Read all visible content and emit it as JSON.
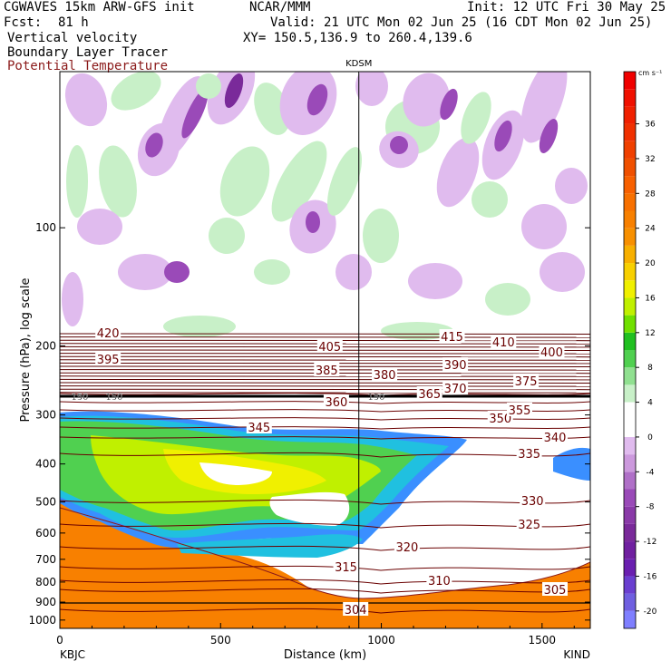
{
  "header": {
    "model": "CGWAVES 15km ARW-GFS init",
    "org": "NCAR/MMM",
    "init": "Init: 12 UTC Fri 30 May 25",
    "fcst_label": "Fcst:",
    "fcst_value": "81 h",
    "valid": "Valid: 21 UTC Mon 02 Jun 25 (16 CDT Mon 02 Jun 25)",
    "xy": "XY= 150.5,136.9 to 260.4,139.6",
    "field1": "Vertical velocity",
    "field2": "Boundary Layer Tracer",
    "field3": "Potential Temperature",
    "field3_color": "#8b1a1a"
  },
  "chart_data": {
    "type": "heatmap",
    "station_marker": "KDSM",
    "station_marker_km": 930,
    "xlabel": "Distance (km)",
    "ylabel": "Pressure (hPa), log scale",
    "x_range_km": [
      0,
      1650
    ],
    "x_ticks": [
      {
        "v": 0,
        "label": "0"
      },
      {
        "v": 500,
        "label": "500"
      },
      {
        "v": 1000,
        "label": "1000"
      },
      {
        "v": 1500,
        "label": "1500"
      }
    ],
    "x_end_labels": [
      "KBJC",
      "KIND"
    ],
    "y_scale": "log",
    "y_range_hpa": [
      1050,
      40
    ],
    "y_ticks": [
      {
        "v": 100,
        "label": "100"
      },
      {
        "v": 200,
        "label": "200"
      },
      {
        "v": 300,
        "label": "300"
      },
      {
        "v": 400,
        "label": "400"
      },
      {
        "v": 500,
        "label": "500"
      },
      {
        "v": 600,
        "label": "600"
      },
      {
        "v": 700,
        "label": "700"
      },
      {
        "v": 800,
        "label": "800"
      },
      {
        "v": 900,
        "label": "900"
      },
      {
        "v": 1000,
        "label": "1000"
      }
    ],
    "colorbar": {
      "units": "cm s⁻¹",
      "levels": [
        -22,
        -20,
        -18,
        -16,
        -14,
        -12,
        -10,
        -8,
        -6,
        -4,
        -2,
        0,
        2,
        4,
        6,
        8,
        10,
        12,
        14,
        16,
        18,
        20,
        22,
        24,
        26,
        28,
        30,
        32,
        34,
        36,
        38,
        40,
        42
      ],
      "colors": [
        "#7f7fff",
        "#6f5fe0",
        "#6a3fd0",
        "#6a1fb0",
        "#7020a0",
        "#7a2a9a",
        "#8a3aa8",
        "#9a4ab8",
        "#b070c8",
        "#cc99dd",
        "#e0bbee",
        "#ffffff",
        "#ffffff",
        "#c8f0c8",
        "#90e090",
        "#50d050",
        "#20c020",
        "#70e000",
        "#c0f000",
        "#f0f000",
        "#f8d000",
        "#f8b000",
        "#f89000",
        "#f88000",
        "#f87000",
        "#f86000",
        "#f05000",
        "#f04000",
        "#f03000",
        "#f02000",
        "#f01000",
        "#f00000"
      ],
      "labels": [
        {
          "v": 36,
          "label": "36"
        },
        {
          "v": 32,
          "label": "32"
        },
        {
          "v": 28,
          "label": "28"
        },
        {
          "v": 24,
          "label": "24"
        },
        {
          "v": 20,
          "label": "20"
        },
        {
          "v": 16,
          "label": "16"
        },
        {
          "v": 12,
          "label": "12"
        },
        {
          "v": 8,
          "label": "8"
        },
        {
          "v": 4,
          "label": "4"
        },
        {
          "v": 0,
          "label": "0"
        },
        {
          "v": -4,
          "label": "-4"
        },
        {
          "v": -8,
          "label": "-8"
        },
        {
          "v": -12,
          "label": "-12"
        },
        {
          "v": -16,
          "label": "-16"
        },
        {
          "v": -20,
          "label": "-20"
        }
      ]
    },
    "isentropes": [
      {
        "theta": 304,
        "label_km": 920
      },
      {
        "theta": 305,
        "label_km": 1540
      },
      {
        "theta": 310,
        "label_km": 1180
      },
      {
        "theta": 315,
        "label_km": 890
      },
      {
        "theta": 320,
        "label_km": 1080
      },
      {
        "theta": 325,
        "label_km": 1460
      },
      {
        "theta": 330,
        "label_km": 1470
      },
      {
        "theta": 335,
        "label_km": 1460
      },
      {
        "theta": 340,
        "label_km": 1540
      },
      {
        "theta": 345,
        "label_km": 620
      },
      {
        "theta": 350,
        "label_km": 1370
      },
      {
        "theta": 355,
        "label_km": 1430
      },
      {
        "theta": 360,
        "label_km": 860
      },
      {
        "theta": 365,
        "label_km": 1150
      },
      {
        "theta": 370,
        "label_km": 1230
      },
      {
        "theta": 375,
        "label_km": 1450
      },
      {
        "theta": 380,
        "label_km": 1010
      },
      {
        "theta": 385,
        "label_km": 830
      },
      {
        "theta": 390,
        "label_km": 1230
      },
      {
        "theta": 395,
        "label_km": 150
      },
      {
        "theta": 400,
        "label_km": 1530
      },
      {
        "theta": 405,
        "label_km": 840
      },
      {
        "theta": 410,
        "label_km": 1380
      },
      {
        "theta": 415,
        "label_km": 1220
      },
      {
        "theta": 420,
        "label_km": 150
      }
    ],
    "tracer_label": "150"
  }
}
